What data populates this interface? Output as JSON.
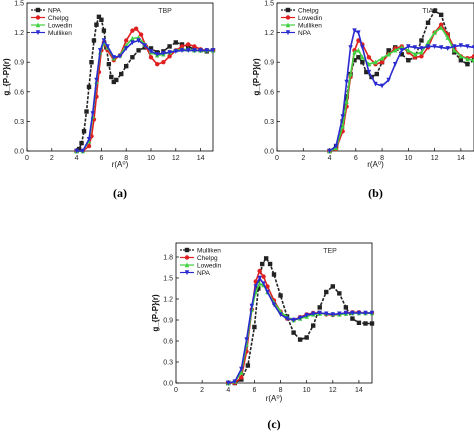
{
  "chart_data": [
    {
      "type": "line",
      "panel_label": "(a)",
      "inset_title": "TBP",
      "xlabel": "r(A⁰)",
      "ylabel": "g_{P-P}(r)",
      "xlim": [
        0,
        15
      ],
      "ylim": [
        0,
        1.5
      ],
      "xticks": [
        0,
        2,
        4,
        6,
        8,
        10,
        12,
        14
      ],
      "yticks": [
        0.0,
        0.3,
        0.6,
        0.9,
        1.2,
        1.5
      ],
      "ytick_labels": [
        "0.0",
        "0.3",
        "0.6",
        "0.9",
        "1.2",
        "1.5"
      ],
      "legend_position": "top-left",
      "series": [
        {
          "name": "NPA",
          "color": "#222222",
          "marker": "square",
          "x": [
            4.0,
            4.2,
            4.4,
            4.6,
            4.8,
            5.0,
            5.2,
            5.4,
            5.6,
            5.8,
            6.0,
            6.2,
            6.4,
            6.6,
            6.8,
            7.0,
            7.2,
            7.6,
            8.0,
            8.5,
            9.0,
            9.5,
            10.0,
            10.5,
            11.0,
            11.5,
            12.0,
            12.5,
            13.0,
            13.5,
            14.0,
            14.5,
            15.0
          ],
          "y": [
            0.0,
            0.02,
            0.08,
            0.2,
            0.4,
            0.65,
            0.9,
            1.12,
            1.28,
            1.36,
            1.33,
            1.22,
            1.05,
            0.88,
            0.75,
            0.7,
            0.72,
            0.78,
            0.86,
            0.95,
            1.02,
            1.05,
            1.04,
            1.0,
            1.01,
            1.06,
            1.1,
            1.08,
            1.06,
            1.03,
            1.02,
            1.01,
            1.02
          ]
        },
        {
          "name": "Chelpg",
          "color": "#e02020",
          "marker": "circle",
          "x": [
            4.0,
            4.5,
            5.0,
            5.2,
            5.4,
            5.6,
            5.8,
            6.0,
            6.2,
            6.5,
            7.0,
            7.5,
            8.0,
            8.5,
            8.8,
            9.2,
            9.6,
            10.0,
            10.5,
            11.0,
            11.5,
            12.0,
            12.5,
            13.0,
            13.5,
            14.0,
            14.5,
            15.0
          ],
          "y": [
            0.0,
            0.0,
            0.05,
            0.15,
            0.32,
            0.55,
            0.8,
            1.02,
            1.1,
            1.02,
            0.92,
            0.97,
            1.12,
            1.22,
            1.24,
            1.18,
            1.06,
            0.95,
            0.88,
            0.9,
            0.96,
            1.02,
            1.06,
            1.08,
            1.06,
            1.03,
            1.02,
            1.02
          ]
        },
        {
          "name": "Lowedin",
          "color": "#40d040",
          "marker": "triangle",
          "x": [
            4.0,
            4.5,
            5.0,
            5.3,
            5.6,
            5.9,
            6.2,
            6.5,
            7.0,
            7.5,
            8.0,
            8.5,
            9.0,
            9.5,
            10.0,
            10.5,
            11.0,
            11.5,
            12.0,
            12.5,
            13.0,
            13.5,
            14.0,
            14.5,
            15.0
          ],
          "y": [
            0.0,
            0.0,
            0.1,
            0.35,
            0.7,
            1.0,
            1.1,
            1.05,
            0.94,
            0.97,
            1.07,
            1.14,
            1.15,
            1.08,
            1.0,
            0.97,
            0.98,
            1.0,
            1.02,
            1.03,
            1.03,
            1.02,
            1.02,
            1.02,
            1.02
          ]
        },
        {
          "name": "Mulliken",
          "color": "#2a2ad0",
          "marker": "triangle-down",
          "x": [
            4.0,
            4.5,
            5.0,
            5.3,
            5.6,
            5.9,
            6.2,
            6.5,
            7.0,
            7.5,
            8.0,
            8.5,
            9.0,
            9.5,
            10.0,
            10.5,
            11.0,
            11.5,
            12.0,
            12.5,
            13.0,
            13.5,
            14.0,
            14.5,
            15.0
          ],
          "y": [
            0.0,
            0.0,
            0.12,
            0.38,
            0.72,
            1.02,
            1.12,
            1.06,
            0.95,
            0.96,
            1.04,
            1.1,
            1.12,
            1.07,
            1.01,
            0.98,
            0.99,
            1.0,
            1.01,
            1.02,
            1.02,
            1.02,
            1.02,
            1.02,
            1.02
          ]
        }
      ]
    },
    {
      "type": "line",
      "panel_label": "(b)",
      "inset_title": "TIAP",
      "xlabel": "r(A⁰)",
      "ylabel": "g_{P-P}(r)",
      "xlim": [
        0,
        15
      ],
      "ylim": [
        0,
        1.5
      ],
      "xticks": [
        0,
        2,
        4,
        6,
        8,
        10,
        12,
        14
      ],
      "yticks": [
        0.0,
        0.3,
        0.6,
        0.9,
        1.2,
        1.5
      ],
      "ytick_labels": [
        "0.0",
        "0.3",
        "0.6",
        "0.9",
        "1.2",
        "1.5"
      ],
      "legend_position": "top-left",
      "series": [
        {
          "name": "Chelpg",
          "color": "#222222",
          "marker": "square",
          "x": [
            4.0,
            4.5,
            5.0,
            5.3,
            5.6,
            5.9,
            6.2,
            6.5,
            6.8,
            7.2,
            7.6,
            8.0,
            8.5,
            9.0,
            9.5,
            10.0,
            10.5,
            11.0,
            11.5,
            12.0,
            12.5,
            13.0,
            13.5,
            14.0,
            14.5,
            15.0
          ],
          "y": [
            0.0,
            0.05,
            0.3,
            0.55,
            0.78,
            0.92,
            0.95,
            0.9,
            0.8,
            0.75,
            0.78,
            0.9,
            1.02,
            1.05,
            0.98,
            0.92,
            0.95,
            1.12,
            1.3,
            1.42,
            1.38,
            1.18,
            1.0,
            0.92,
            0.88,
            0.92
          ]
        },
        {
          "name": "Lowedin",
          "color": "#e02020",
          "marker": "circle",
          "x": [
            4.0,
            4.5,
            5.0,
            5.3,
            5.6,
            5.9,
            6.2,
            6.5,
            7.0,
            7.5,
            8.0,
            8.5,
            9.0,
            9.5,
            10.0,
            10.5,
            11.0,
            11.5,
            12.0,
            12.5,
            13.0,
            13.5,
            14.0,
            14.5,
            15.0
          ],
          "y": [
            0.0,
            0.02,
            0.2,
            0.45,
            0.75,
            1.02,
            1.12,
            1.08,
            0.95,
            0.88,
            0.9,
            0.98,
            1.04,
            1.06,
            1.0,
            0.95,
            0.96,
            1.05,
            1.2,
            1.28,
            1.18,
            1.04,
            0.96,
            0.94,
            0.96
          ]
        },
        {
          "name": "Mulliken",
          "color": "#40d040",
          "marker": "triangle",
          "x": [
            4.0,
            4.5,
            5.0,
            5.3,
            5.6,
            5.9,
            6.2,
            6.5,
            7.0,
            7.5,
            8.0,
            8.5,
            9.0,
            9.5,
            10.0,
            10.5,
            11.0,
            11.5,
            12.0,
            12.5,
            13.0,
            13.5,
            14.0,
            14.5,
            15.0
          ],
          "y": [
            0.0,
            0.03,
            0.25,
            0.5,
            0.78,
            1.0,
            1.02,
            0.95,
            0.88,
            0.9,
            0.94,
            0.98,
            1.02,
            1.05,
            1.02,
            0.98,
            1.0,
            1.1,
            1.2,
            1.25,
            1.15,
            1.02,
            0.96,
            0.93,
            0.92
          ]
        },
        {
          "name": "NPA",
          "color": "#2a2ad0",
          "marker": "triangle-down",
          "x": [
            4.0,
            4.5,
            5.0,
            5.3,
            5.6,
            5.9,
            6.2,
            6.5,
            7.0,
            7.5,
            8.0,
            8.5,
            9.0,
            9.5,
            10.0,
            10.5,
            11.0,
            11.5,
            12.0,
            12.5,
            13.0,
            13.5,
            14.0,
            14.5,
            15.0
          ],
          "y": [
            0.0,
            0.05,
            0.35,
            0.7,
            1.05,
            1.22,
            1.2,
            1.05,
            0.8,
            0.68,
            0.66,
            0.72,
            0.88,
            1.02,
            1.06,
            1.05,
            1.04,
            1.06,
            1.06,
            1.05,
            1.04,
            1.06,
            1.07,
            1.06,
            1.05
          ]
        }
      ]
    },
    {
      "type": "line",
      "panel_label": "(c)",
      "inset_title": "TEP",
      "xlabel": "r(A⁰)",
      "ylabel": "g_{P-P}(r)",
      "xlim": [
        0,
        15
      ],
      "ylim": [
        0,
        2.0
      ],
      "xticks": [
        0,
        2,
        4,
        6,
        8,
        10,
        12,
        14
      ],
      "yticks": [
        0.0,
        0.3,
        0.6,
        0.9,
        1.2,
        1.5,
        1.8
      ],
      "ytick_labels": [
        "0.0",
        "0.3",
        "0.6",
        "0.9",
        "1.2",
        "1.5",
        "1.8"
      ],
      "legend_position": "top-left",
      "series": [
        {
          "name": "Mulliken",
          "color": "#222222",
          "marker": "square",
          "x": [
            4.0,
            4.5,
            5.0,
            5.5,
            6.0,
            6.3,
            6.6,
            6.9,
            7.2,
            7.5,
            8.0,
            8.5,
            9.0,
            9.5,
            10.0,
            10.5,
            11.0,
            11.5,
            12.0,
            12.5,
            13.0,
            13.5,
            14.0,
            14.5,
            15.0
          ],
          "y": [
            0.0,
            0.0,
            0.05,
            0.25,
            0.8,
            1.35,
            1.7,
            1.78,
            1.7,
            1.55,
            1.25,
            0.95,
            0.72,
            0.62,
            0.65,
            0.82,
            1.08,
            1.3,
            1.38,
            1.28,
            1.08,
            0.92,
            0.86,
            0.85,
            0.85
          ]
        },
        {
          "name": "Chelpg",
          "color": "#e02020",
          "marker": "circle",
          "x": [
            4.0,
            4.5,
            5.0,
            5.4,
            5.8,
            6.1,
            6.4,
            6.7,
            7.0,
            7.5,
            8.0,
            8.5,
            9.0,
            9.5,
            10.0,
            10.5,
            11.0,
            11.5,
            12.0,
            12.5,
            13.0,
            13.5,
            14.0,
            14.5,
            15.0
          ],
          "y": [
            0.0,
            0.0,
            0.08,
            0.45,
            1.05,
            1.45,
            1.6,
            1.52,
            1.38,
            1.18,
            1.02,
            0.92,
            0.9,
            0.94,
            0.98,
            1.0,
            1.0,
            0.98,
            0.97,
            0.98,
            1.0,
            1.01,
            1.01,
            1.0,
            1.0
          ]
        },
        {
          "name": "Lowedin",
          "color": "#40d040",
          "marker": "triangle",
          "x": [
            4.0,
            4.5,
            5.0,
            5.4,
            5.8,
            6.1,
            6.4,
            6.7,
            7.0,
            7.5,
            8.0,
            8.5,
            9.0,
            9.5,
            10.0,
            10.5,
            11.0,
            11.5,
            12.0,
            12.5,
            13.0,
            13.5,
            14.0,
            14.5,
            15.0
          ],
          "y": [
            0.0,
            0.02,
            0.15,
            0.55,
            1.05,
            1.3,
            1.42,
            1.4,
            1.3,
            1.15,
            1.02,
            0.94,
            0.9,
            0.92,
            0.95,
            0.98,
            0.99,
            0.99,
            0.98,
            0.98,
            0.99,
            1.0,
            1.0,
            1.0,
            1.0
          ]
        },
        {
          "name": "NPA",
          "color": "#2a2ad0",
          "marker": "triangle-down",
          "x": [
            4.0,
            4.5,
            5.0,
            5.4,
            5.8,
            6.1,
            6.4,
            6.7,
            7.0,
            7.5,
            8.0,
            8.5,
            9.0,
            9.5,
            10.0,
            10.5,
            11.0,
            11.5,
            12.0,
            12.5,
            13.0,
            13.5,
            14.0,
            14.5,
            15.0
          ],
          "y": [
            0.0,
            0.02,
            0.2,
            0.62,
            1.1,
            1.38,
            1.5,
            1.42,
            1.3,
            1.12,
            0.98,
            0.92,
            0.9,
            0.93,
            0.97,
            0.99,
            1.0,
            0.99,
            0.98,
            0.99,
            1.0,
            1.0,
            1.0,
            1.0,
            1.0
          ]
        }
      ]
    }
  ]
}
